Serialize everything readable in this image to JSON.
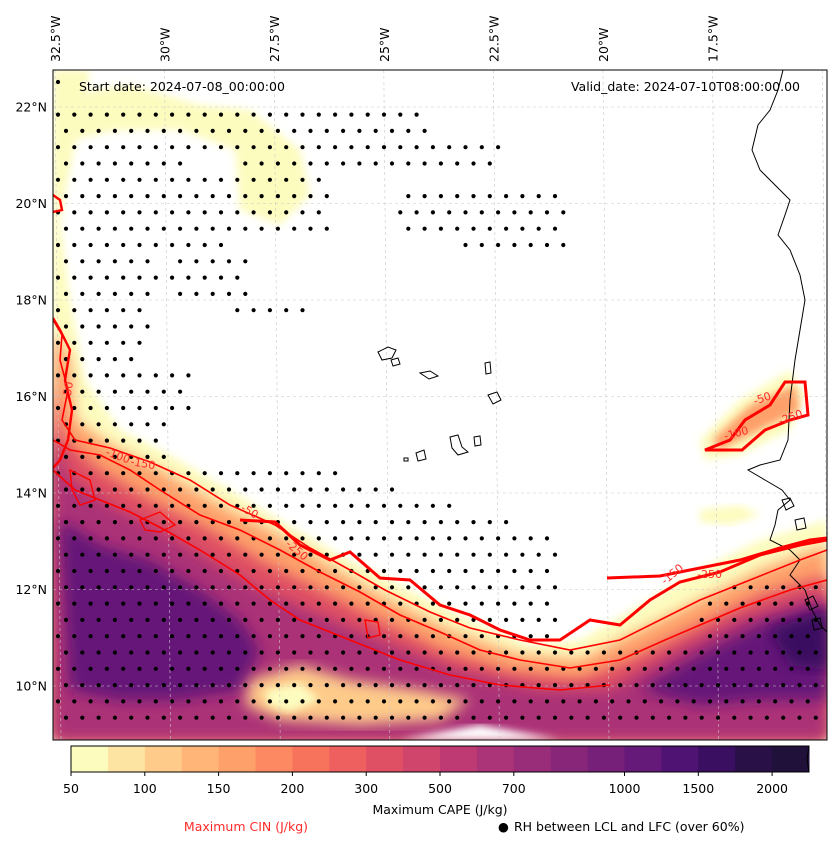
{
  "chart_data": {
    "type": "heatmap",
    "map_type": "contour map with stipple overlay",
    "header": {
      "start_date": "Start date: 2024-07-08_00:00:00",
      "valid_date": "Valid_date: 2024-07-10T08:00:00.00"
    },
    "lon_labels": [
      "32.5°W",
      "30°W",
      "27.5°W",
      "25°W",
      "22.5°W",
      "20°W",
      "17.5°W"
    ],
    "lon_values": [
      -32.5,
      -30,
      -27.5,
      -25,
      -22.5,
      -20,
      -17.5
    ],
    "lat_labels": [
      "22°N",
      "20°N",
      "18°N",
      "16°N",
      "14°N",
      "12°N",
      "10°N"
    ],
    "lat_values": [
      22,
      20,
      18,
      16,
      14,
      12,
      10
    ],
    "lon_range": [
      -32.5,
      -15.0
    ],
    "lat_range": [
      8.9,
      22.7
    ],
    "gridlines": true,
    "cape": {
      "label": "Maximum CAPE (J/kg)",
      "levels": [
        50,
        75,
        100,
        125,
        150,
        175,
        200,
        250,
        300,
        400,
        500,
        600,
        700,
        800,
        900,
        1000,
        1250,
        1500,
        1750,
        2000
      ],
      "tick_labels": [
        "50",
        "100",
        "150",
        "200",
        "300",
        "500",
        "700",
        "1000",
        "1500",
        "2000"
      ],
      "tick_values": [
        50,
        100,
        150,
        200,
        300,
        500,
        700,
        1000,
        1500,
        2000
      ],
      "colors": [
        "#fdfcbf",
        "#fde4a3",
        "#fecb8a",
        "#feb577",
        "#fea06a",
        "#fc8961",
        "#f7735c",
        "#ee5f5f",
        "#df5064",
        "#cf456b",
        "#bd3a72",
        "#ab3377",
        "#992d79",
        "#882679",
        "#762079",
        "#651978",
        "#4f1373",
        "#3a0f61",
        "#291047",
        "#1f1139"
      ],
      "extend": "max"
    },
    "cin": {
      "label": "Maximum CIN (J/kg)",
      "contour_labels": [
        "-50",
        "-100",
        "-150",
        "-250",
        "-50",
        "-50",
        "-100",
        "-250",
        "-150",
        "-250"
      ],
      "contour_levels": [
        -50,
        -100,
        -150,
        -250
      ],
      "color": "#ff0000"
    },
    "stipple": {
      "label": "RH between LCL and LFC (over 60%)",
      "marker": "●"
    }
  }
}
